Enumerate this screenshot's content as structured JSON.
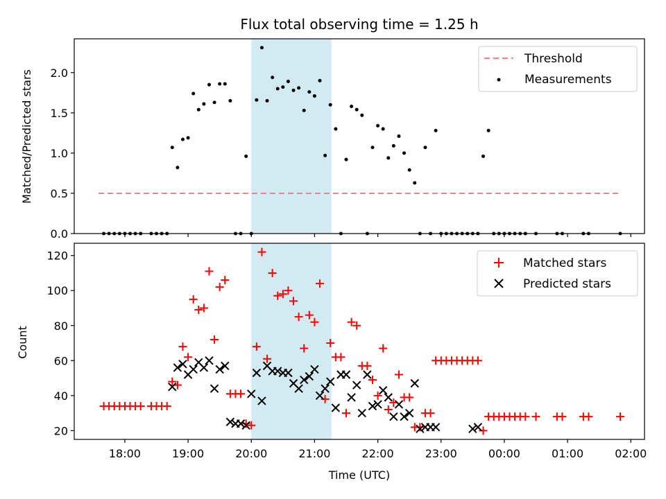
{
  "chart_data": [
    {
      "type": "scatter",
      "title": "Flux total observing time = 1.25 h",
      "xlabel": "",
      "ylabel": "Matched/Predicted stars",
      "xlim": [
        "17:12",
        "02:13"
      ],
      "ylim": [
        0,
        2.42
      ],
      "yticks": [
        "0.0",
        "0.5",
        "1.0",
        "1.5",
        "2.0"
      ],
      "grid": false,
      "legend": "upper right",
      "highlight_span": [
        "20:00",
        "21:16"
      ],
      "series": [
        {
          "name": "Threshold",
          "style": "dashed-line",
          "color": "#ff7f7f",
          "x": [
            "17:35",
            "01:51"
          ],
          "y": [
            0.5,
            0.5
          ]
        },
        {
          "name": "Measurements",
          "style": "dot",
          "color": "#000000",
          "x": [
            "17:40",
            "17:45",
            "17:50",
            "17:55",
            "18:00",
            "18:05",
            "18:10",
            "18:15",
            "18:25",
            "18:30",
            "18:35",
            "18:40",
            "18:45",
            "18:50",
            "18:55",
            "19:00",
            "19:05",
            "19:10",
            "19:15",
            "19:20",
            "19:25",
            "19:30",
            "19:35",
            "19:40",
            "19:45",
            "19:50",
            "19:55",
            "20:00",
            "20:05",
            "20:10",
            "20:15",
            "20:20",
            "20:25",
            "20:30",
            "20:35",
            "20:40",
            "20:45",
            "20:50",
            "20:55",
            "21:00",
            "21:05",
            "21:10",
            "21:15",
            "21:20",
            "21:25",
            "21:30",
            "21:35",
            "21:40",
            "21:45",
            "21:50",
            "21:55",
            "22:00",
            "22:05",
            "22:10",
            "22:15",
            "22:20",
            "22:25",
            "22:30",
            "22:35",
            "22:40",
            "22:45",
            "22:50",
            "22:55",
            "23:00",
            "23:05",
            "23:10",
            "23:15",
            "23:20",
            "23:25",
            "23:30",
            "23:35",
            "23:40",
            "23:45",
            "23:50",
            "23:55",
            "00:00",
            "00:05",
            "00:10",
            "00:15",
            "00:20",
            "00:30",
            "00:50",
            "00:55",
            "01:15",
            "01:20",
            "01:50"
          ],
          "y": [
            0,
            0,
            0,
            0,
            0,
            0,
            0,
            0,
            0,
            0,
            0,
            0,
            1.07,
            0.82,
            1.17,
            1.19,
            1.74,
            1.54,
            1.61,
            1.85,
            1.63,
            1.86,
            1.86,
            1.65,
            0,
            0,
            0.96,
            0,
            1.66,
            2.31,
            1.65,
            1.94,
            1.8,
            1.82,
            1.89,
            1.78,
            1.81,
            1.53,
            1.76,
            1.71,
            1.9,
            0.97,
            1.6,
            1.3,
            0,
            0.92,
            1.58,
            1.54,
            1.47,
            0,
            1.07,
            1.34,
            1.3,
            0.94,
            1.09,
            1.21,
            1.0,
            0.79,
            0.63,
            0,
            1.07,
            0,
            1.28,
            0,
            0,
            0,
            0,
            0,
            0,
            0,
            0,
            0.96,
            1.28,
            0,
            0,
            0,
            0,
            0,
            0,
            0,
            0,
            0,
            0,
            0,
            0,
            0
          ]
        }
      ]
    },
    {
      "type": "scatter",
      "title": "",
      "xlabel": "Time (UTC)",
      "ylabel": "Count",
      "xlim": [
        "17:12",
        "02:13"
      ],
      "ylim": [
        15,
        127
      ],
      "yticks": [
        "20",
        "40",
        "60",
        "80",
        "100",
        "120"
      ],
      "xticks": [
        "18:00",
        "19:00",
        "20:00",
        "21:00",
        "22:00",
        "23:00",
        "00:00",
        "01:00",
        "02:00"
      ],
      "grid": false,
      "legend": "upper right",
      "highlight_span": [
        "20:00",
        "21:16"
      ],
      "series": [
        {
          "name": "Matched stars",
          "marker": "+",
          "color": "#ff0000",
          "x": [
            "17:40",
            "17:45",
            "17:50",
            "17:55",
            "18:00",
            "18:05",
            "18:10",
            "18:15",
            "18:25",
            "18:30",
            "18:35",
            "18:40",
            "18:45",
            "18:50",
            "18:55",
            "19:00",
            "19:05",
            "19:10",
            "19:15",
            "19:20",
            "19:25",
            "19:30",
            "19:35",
            "19:40",
            "19:45",
            "19:50",
            "19:55",
            "20:00",
            "20:05",
            "20:10",
            "20:15",
            "20:20",
            "20:25",
            "20:30",
            "20:35",
            "20:40",
            "20:45",
            "20:50",
            "20:55",
            "21:00",
            "21:05",
            "21:10",
            "21:15",
            "21:20",
            "21:25",
            "21:30",
            "21:35",
            "21:40",
            "21:45",
            "21:50",
            "21:55",
            "22:00",
            "22:05",
            "22:10",
            "22:15",
            "22:20",
            "22:25",
            "22:30",
            "22:35",
            "22:40",
            "22:45",
            "22:50",
            "22:55",
            "23:00",
            "23:05",
            "23:10",
            "23:15",
            "23:20",
            "23:25",
            "23:30",
            "23:35",
            "23:40",
            "23:45",
            "23:50",
            "23:55",
            "00:00",
            "00:05",
            "00:10",
            "00:15",
            "00:20",
            "00:30",
            "00:50",
            "00:55",
            "01:15",
            "01:20",
            "01:50"
          ],
          "y": [
            34,
            34,
            34,
            34,
            34,
            34,
            34,
            34,
            34,
            34,
            34,
            34,
            48,
            46,
            68,
            62,
            95,
            89,
            90,
            111,
            72,
            102,
            106,
            41,
            41,
            41,
            24,
            23,
            68,
            122,
            61,
            110,
            97,
            98,
            100,
            94,
            85,
            67,
            86,
            82,
            104,
            38,
            70,
            62,
            62,
            30,
            82,
            80,
            57,
            57,
            49,
            40,
            67,
            32,
            36,
            52,
            39,
            39,
            22,
            22,
            30,
            30,
            60,
            60,
            60,
            60,
            60,
            60,
            60,
            60,
            60,
            20,
            28,
            28,
            28,
            28,
            28,
            28,
            28,
            28,
            28,
            28,
            28,
            28,
            28,
            28
          ]
        },
        {
          "name": "Predicted stars",
          "marker": "x",
          "color": "#000000",
          "x": [
            "18:45",
            "18:50",
            "18:55",
            "19:00",
            "19:05",
            "19:10",
            "19:15",
            "19:20",
            "19:25",
            "19:30",
            "19:35",
            "19:40",
            "19:45",
            "19:50",
            "19:55",
            "20:00",
            "20:05",
            "20:10",
            "20:15",
            "20:20",
            "20:25",
            "20:30",
            "20:35",
            "20:40",
            "20:45",
            "20:50",
            "20:55",
            "21:00",
            "21:05",
            "21:10",
            "21:15",
            "21:20",
            "21:25",
            "21:30",
            "21:35",
            "21:40",
            "21:45",
            "21:50",
            "21:55",
            "22:00",
            "22:05",
            "22:10",
            "22:15",
            "22:20",
            "22:25",
            "22:30",
            "22:35",
            "22:40",
            "22:45",
            "22:50",
            "22:55",
            "23:30",
            "23:35"
          ],
          "y": [
            45,
            56,
            58,
            52,
            55,
            59,
            56,
            60,
            44,
            55,
            57,
            25,
            24,
            24,
            23,
            41,
            53,
            37,
            57,
            54,
            54,
            53,
            53,
            47,
            44,
            49,
            51,
            55,
            40,
            44,
            48,
            33,
            52,
            52,
            39,
            46,
            30,
            52,
            34,
            35,
            43,
            39,
            28,
            35,
            28,
            30,
            47,
            21,
            22,
            22,
            22,
            21,
            22
          ]
        }
      ]
    }
  ]
}
